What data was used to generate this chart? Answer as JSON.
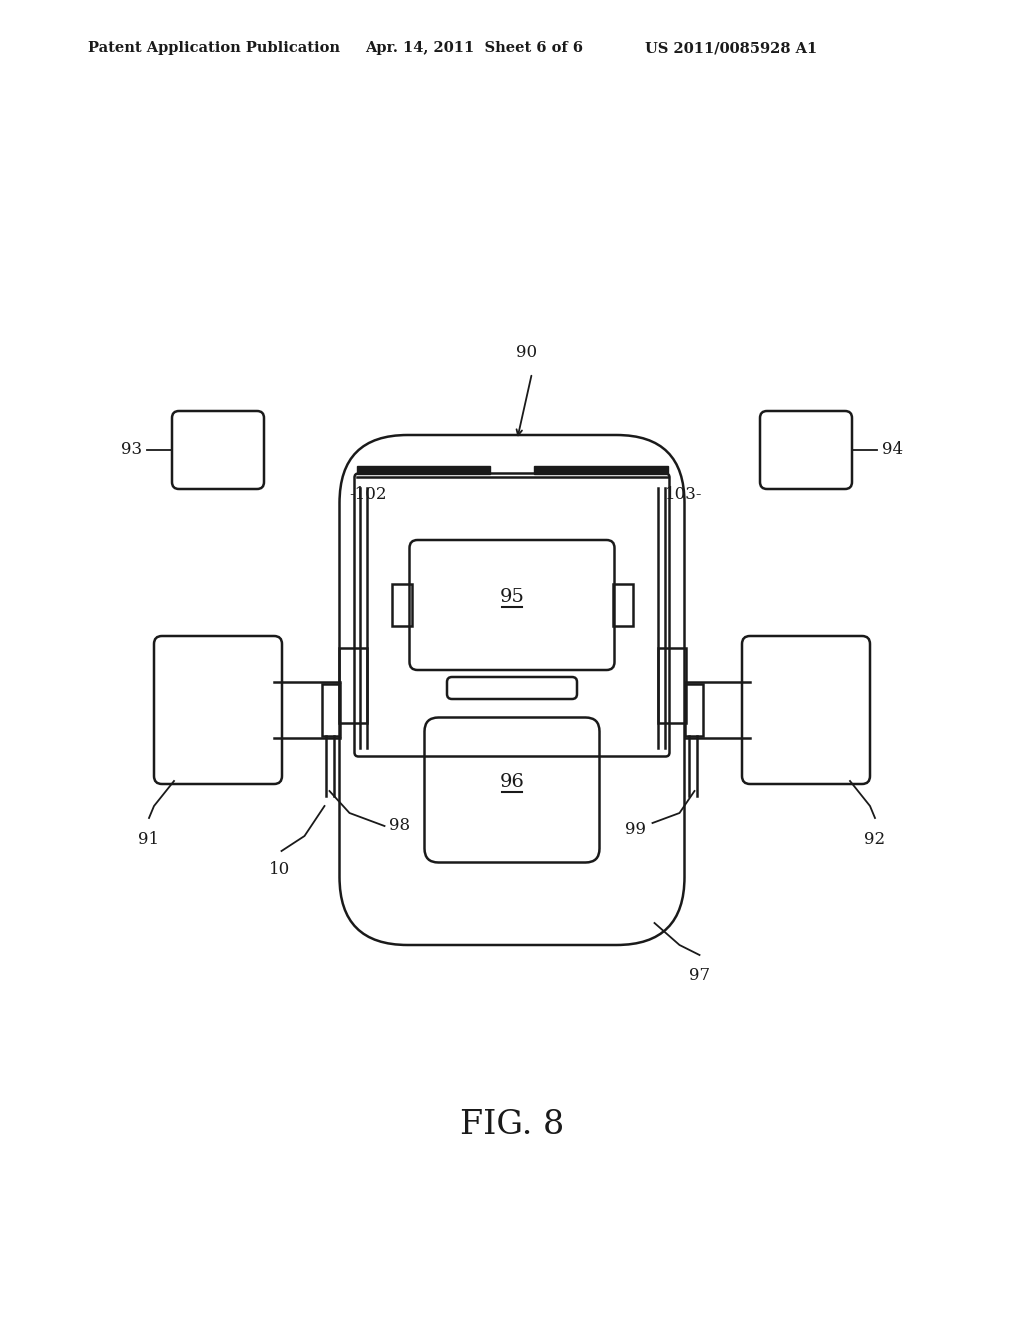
{
  "bg_color": "#ffffff",
  "line_color": "#1a1a1a",
  "header_left": "Patent Application Publication",
  "header_mid": "Apr. 14, 2011  Sheet 6 of 6",
  "header_right": "US 2011/0085928 A1",
  "fig_label": "FIG. 8",
  "label_90": "90",
  "label_91": "91",
  "label_92": "92",
  "label_93": "93",
  "label_94": "94",
  "label_95": "95",
  "label_96": "96",
  "label_97": "97",
  "label_98": "98",
  "label_99": "99",
  "label_10": "10",
  "label_102": "-102",
  "label_103": "103-"
}
